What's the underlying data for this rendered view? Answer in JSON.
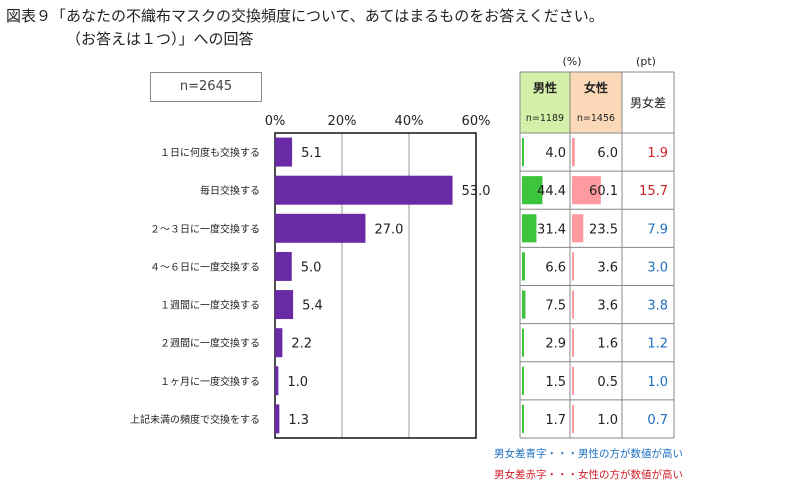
{
  "title": {
    "line1": "図表９「あなたの不織布マスクの交換頻度について、あてはまるものをお答えください。",
    "line2": "（お答えは１つ）」への回答"
  },
  "sample": "n=2645",
  "colors": {
    "bar": "#6a2aa6",
    "male": "#3cc43c",
    "female": "#ff9aa0",
    "male_header_bg": "#d4f0a8",
    "female_header_bg": "#fbd9b8",
    "diff_blue": "#1f6fc0",
    "diff_red": "#d0202a"
  },
  "chart_data": {
    "type": "bar",
    "orientation": "horizontal",
    "categories": [
      "１日に何度も交換する",
      "毎日交換する",
      "２～３日に一度交換する",
      "４～６日に一度交換する",
      "１週間に一度交換する",
      "２週間に一度交換する",
      "１ヶ月に一度交換する",
      "上記未満の頻度で交換をする"
    ],
    "values": [
      5.1,
      53.0,
      27.0,
      5.0,
      5.4,
      2.2,
      1.0,
      1.3
    ],
    "value_labels": [
      "5.1",
      "53.0",
      "27.0",
      "5.0",
      "5.4",
      "2.2",
      "1.0",
      "1.3"
    ],
    "xlim": [
      0,
      60
    ],
    "xticks": [
      0,
      20,
      40,
      60
    ],
    "xtick_labels": [
      "0%",
      "20%",
      "40%",
      "60%"
    ],
    "grid": true
  },
  "table": {
    "unit_percent": "(%)",
    "unit_pt": "(pt)",
    "male_label": "男性",
    "female_label": "女性",
    "diff_label": "男女差",
    "male_n": "n=1189",
    "female_n": "n=1456",
    "rows": [
      {
        "male": 4.0,
        "female": 6.0,
        "male_text": "4.0",
        "female_text": "6.0",
        "diff": "1.9",
        "diff_color": "red"
      },
      {
        "male": 44.4,
        "female": 60.1,
        "male_text": "44.4",
        "female_text": "60.1",
        "diff": "15.7",
        "diff_color": "red"
      },
      {
        "male": 31.4,
        "female": 23.5,
        "male_text": "31.4",
        "female_text": "23.5",
        "diff": "7.9",
        "diff_color": "blue"
      },
      {
        "male": 6.6,
        "female": 3.6,
        "male_text": "6.6",
        "female_text": "3.6",
        "diff": "3.0",
        "diff_color": "blue"
      },
      {
        "male": 7.5,
        "female": 3.6,
        "male_text": "7.5",
        "female_text": "3.6",
        "diff": "3.8",
        "diff_color": "blue"
      },
      {
        "male": 2.9,
        "female": 1.6,
        "male_text": "2.9",
        "female_text": "1.6",
        "diff": "1.2",
        "diff_color": "blue"
      },
      {
        "male": 1.5,
        "female": 0.5,
        "male_text": "1.5",
        "female_text": "0.5",
        "diff": "1.0",
        "diff_color": "blue"
      },
      {
        "male": 1.7,
        "female": 1.0,
        "male_text": "1.7",
        "female_text": "1.0",
        "diff": "0.7",
        "diff_color": "blue"
      }
    ]
  },
  "legend": {
    "blue_note": "男女差青字・・・男性の方が数値が高い",
    "red_note": "男女差赤字・・・女性の方が数値が高い"
  }
}
